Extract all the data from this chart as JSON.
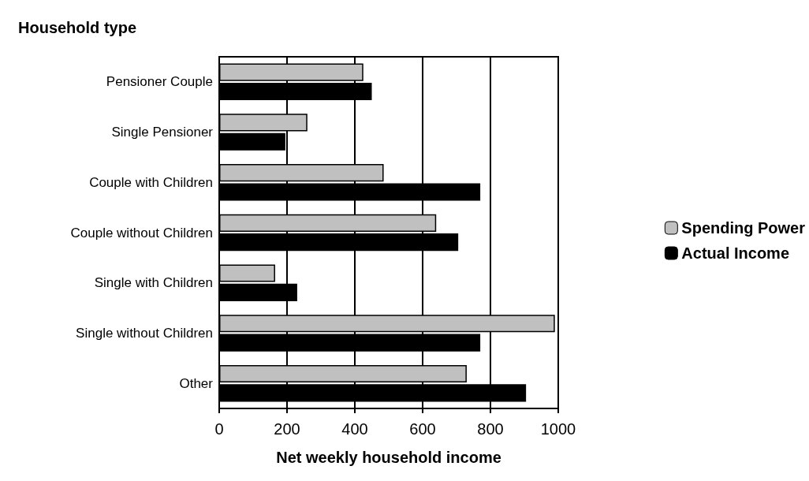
{
  "chart_data": {
    "type": "bar",
    "orientation": "horizontal",
    "ylabel": "Household type",
    "xlabel": "Net weekly household income",
    "categories": [
      "Pensioner Couple",
      "Single Pensioner",
      "Couple with Children",
      "Couple without Children",
      "Single with Children",
      "Single without Children",
      "Other"
    ],
    "series": [
      {
        "name": "Spending Power",
        "color": "#c0c0c0",
        "values": [
          425,
          260,
          485,
          640,
          165,
          990,
          730
        ]
      },
      {
        "name": "Actual Income",
        "color": "#000000",
        "values": [
          450,
          195,
          770,
          705,
          230,
          770,
          905
        ]
      }
    ],
    "xlim": [
      0,
      1000
    ],
    "xticks": [
      0,
      200,
      400,
      600,
      800,
      1000
    ],
    "grid": "x",
    "legend": "right"
  }
}
